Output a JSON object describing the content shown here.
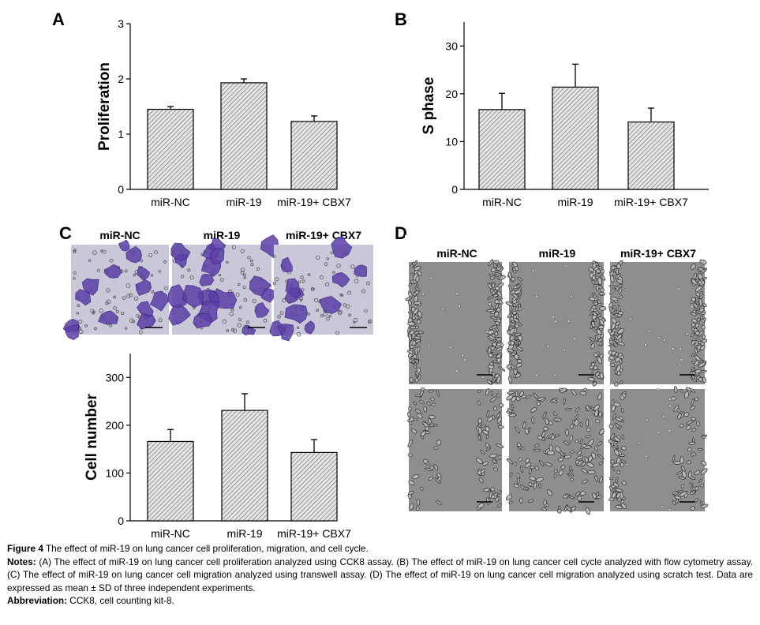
{
  "panels": {
    "A": {
      "letter": "A"
    },
    "B": {
      "letter": "B"
    },
    "C": {
      "letter": "C",
      "photo_labels": [
        "miR-NC",
        "miR-19",
        "miR-19+ CBX7"
      ]
    },
    "D": {
      "letter": "D",
      "photo_labels": [
        "miR-NC",
        "miR-19",
        "miR-19+ CBX7"
      ]
    }
  },
  "chart_data": [
    {
      "id": "A",
      "type": "bar",
      "categories": [
        "miR-NC",
        "miR-19",
        "miR-19+ CBX7"
      ],
      "values": [
        1.45,
        1.93,
        1.23
      ],
      "errors": [
        0.05,
        0.07,
        0.1
      ],
      "ylabel": "Proliferation",
      "ylim": [
        0,
        3
      ],
      "yticks": [
        0,
        1,
        2,
        3
      ]
    },
    {
      "id": "B",
      "type": "bar",
      "categories": [
        "miR-NC",
        "miR-19",
        "miR-19+ CBX7"
      ],
      "values": [
        16.7,
        21.4,
        14.1
      ],
      "errors": [
        3.4,
        4.8,
        2.9
      ],
      "ylabel": "S phase",
      "ylim": [
        0,
        35
      ],
      "yticks": [
        0,
        10,
        20,
        30
      ]
    },
    {
      "id": "C",
      "type": "bar",
      "categories": [
        "miR-NC",
        "miR-19",
        "miR-19+ CBX7"
      ],
      "values": [
        166,
        231,
        143
      ],
      "errors": [
        25,
        35,
        27
      ],
      "ylabel": "Cell number",
      "ylim": [
        0,
        350
      ],
      "yticks": [
        0,
        100,
        200,
        300
      ]
    }
  ],
  "caption": {
    "figure_label": "Figure 4",
    "figure_text": " The effect of miR-19 on lung cancer cell proliferation, migration, and cell cycle.",
    "notes_label": "Notes:",
    "notes_text": " (A) The effect of miR-19 on lung cancer cell proliferation analyzed using CCK8 assay. (B) The effect of miR-19 on lung cancer cell cycle analyzed with flow cytometry assay. (C) The effect of miR-19 on lung cancer cell migration analyzed using transwell assay. (D) The effect of miR-19 on lung cancer cell migration analyzed using scratch test. Data are expressed as mean ± SD of three independent experiments.",
    "abbrev_label": "Abbreviation:",
    "abbrev_text": " CCK8, cell counting kit-8."
  },
  "colors": {
    "bar_hatch": "#555555",
    "transwell_bg": "#c9c8d8",
    "transwell_cell": "#5b3fa6",
    "scratch_bg": "#8e8e8e"
  }
}
